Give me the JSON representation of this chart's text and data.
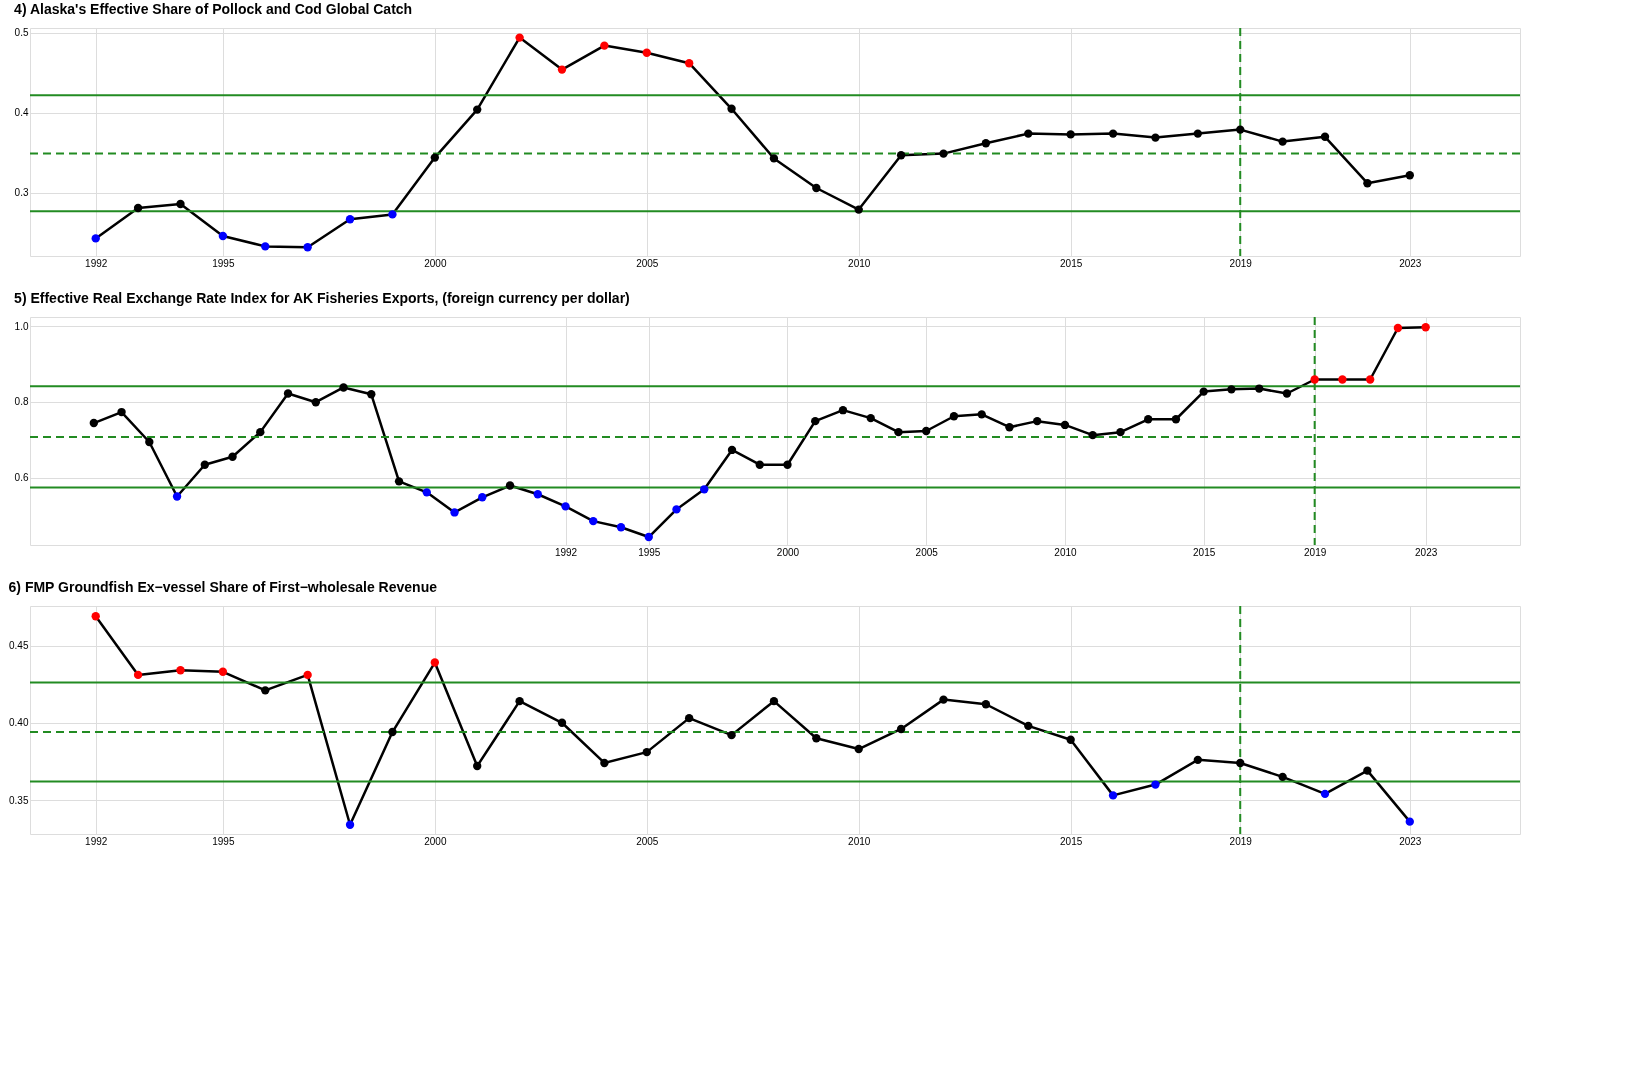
{
  "chart_data": [
    {
      "type": "line",
      "title": "4) Alaska's Effective Share of Pollock and Cod Global Catch",
      "x": [
        1992,
        1993,
        1994,
        1995,
        1996,
        1997,
        1998,
        1999,
        2000,
        2001,
        2002,
        2003,
        2004,
        2005,
        2006,
        2007,
        2008,
        2009,
        2010,
        2011,
        2012,
        2013,
        2014,
        2015,
        2016,
        2017,
        2018,
        2019,
        2020,
        2021,
        2022,
        2023
      ],
      "series": [
        {
          "color": "#000000",
          "values": [
            0.243,
            0.281,
            0.286,
            0.246,
            0.233,
            0.232,
            0.267,
            0.273,
            0.344,
            0.404,
            0.494,
            0.454,
            0.484,
            0.475,
            0.462,
            0.405,
            0.343,
            0.306,
            0.279,
            0.347,
            0.349,
            0.362,
            0.374,
            0.373,
            0.374,
            0.369,
            0.374,
            0.379,
            0.364,
            0.37,
            0.312,
            0.322
          ],
          "colors": [
            "#0000ff",
            "#000000",
            "#000000",
            "#0000ff",
            "#0000ff",
            "#0000ff",
            "#0000ff",
            "#0000ff",
            "#000000",
            "#000000",
            "#ff0000",
            "#ff0000",
            "#ff0000",
            "#ff0000",
            "#ff0000",
            "#000000",
            "#000000",
            "#000000",
            "#000000",
            "#000000",
            "#000000",
            "#000000",
            "#000000",
            "#000000",
            "#000000",
            "#000000",
            "#000000",
            "#000000",
            "#000000",
            "#000000",
            "#000000",
            "#000000"
          ]
        }
      ],
      "xlim": [
        1990.45,
        2025.6
      ],
      "xticks": [
        1992,
        1995,
        2000,
        2005,
        2010,
        2015,
        2019,
        2023
      ],
      "ylim": [
        0.221,
        0.506
      ],
      "yticks": [
        0.3,
        0.4,
        0.5
      ],
      "ref_lines": [
        {
          "axis": "y",
          "value": 0.422,
          "color": "#228b22",
          "line_style": "solid"
        },
        {
          "axis": "y",
          "value": 0.349,
          "color": "#228b22",
          "line_style": "dashed"
        },
        {
          "axis": "y",
          "value": 0.277,
          "color": "#228b22",
          "line_style": "solid"
        },
        {
          "axis": "x",
          "value": 2019,
          "color": "#228b22",
          "line_style": "dashed"
        }
      ],
      "grid": true,
      "marker": "circle",
      "line_style": "solid"
    },
    {
      "type": "line",
      "title": "5) Effective Real Exchange Rate Index for AK Fisheries Exports, (foreign currency per dollar)",
      "x": [
        1975,
        1976,
        1977,
        1978,
        1979,
        1980,
        1981,
        1982,
        1983,
        1984,
        1985,
        1986,
        1987,
        1988,
        1989,
        1990,
        1991,
        1992,
        1993,
        1994,
        1995,
        1996,
        1997,
        1998,
        1999,
        2000,
        2001,
        2002,
        2003,
        2004,
        2005,
        2006,
        2007,
        2008,
        2009,
        2010,
        2011,
        2012,
        2013,
        2014,
        2015,
        2016,
        2017,
        2018,
        2019,
        2020,
        2021,
        2022,
        2023
      ],
      "series": [
        {
          "color": "#000000",
          "values": [
            0.744,
            0.773,
            0.694,
            0.55,
            0.634,
            0.655,
            0.72,
            0.822,
            0.799,
            0.838,
            0.82,
            0.59,
            0.561,
            0.508,
            0.548,
            0.579,
            0.556,
            0.524,
            0.485,
            0.469,
            0.443,
            0.516,
            0.569,
            0.673,
            0.634,
            0.634,
            0.749,
            0.778,
            0.757,
            0.72,
            0.723,
            0.762,
            0.767,
            0.733,
            0.749,
            0.739,
            0.712,
            0.72,
            0.754,
            0.754,
            0.827,
            0.833,
            0.835,
            0.822,
            0.859,
            0.859,
            0.859,
            0.995,
            0.997
          ],
          "colors": [
            "#000000",
            "#000000",
            "#000000",
            "#0000ff",
            "#000000",
            "#000000",
            "#000000",
            "#000000",
            "#000000",
            "#000000",
            "#000000",
            "#000000",
            "#0000ff",
            "#0000ff",
            "#0000ff",
            "#000000",
            "#0000ff",
            "#0000ff",
            "#0000ff",
            "#0000ff",
            "#0000ff",
            "#0000ff",
            "#0000ff",
            "#000000",
            "#000000",
            "#000000",
            "#000000",
            "#000000",
            "#000000",
            "#000000",
            "#000000",
            "#000000",
            "#000000",
            "#000000",
            "#000000",
            "#000000",
            "#000000",
            "#000000",
            "#000000",
            "#000000",
            "#000000",
            "#000000",
            "#000000",
            "#000000",
            "#ff0000",
            "#ff0000",
            "#ff0000",
            "#ff0000",
            "#ff0000"
          ]
        }
      ],
      "xlim": [
        1972.7,
        2026.4
      ],
      "xticks": [
        1992,
        1995,
        2000,
        2005,
        2010,
        2015,
        2019,
        2023
      ],
      "ylim": [
        0.422,
        1.024
      ],
      "yticks": [
        0.6,
        0.8,
        {
          "value": 1.0,
          "label": "1.0"
        }
      ],
      "ref_lines": [
        {
          "axis": "y",
          "value": 0.841,
          "color": "#228b22",
          "line_style": "solid"
        },
        {
          "axis": "y",
          "value": 0.707,
          "color": "#228b22",
          "line_style": "dashed"
        },
        {
          "axis": "y",
          "value": 0.574,
          "color": "#228b22",
          "line_style": "solid"
        },
        {
          "axis": "x",
          "value": 2019,
          "color": "#228b22",
          "line_style": "dashed"
        }
      ],
      "grid": true,
      "marker": "circle",
      "line_style": "solid"
    },
    {
      "type": "line",
      "title": "6) FMP Groundfish Ex−vessel Share of First−wholesale Revenue",
      "x": [
        1992,
        1993,
        1994,
        1995,
        1996,
        1997,
        1998,
        1999,
        2000,
        2001,
        2002,
        2003,
        2004,
        2005,
        2006,
        2007,
        2008,
        2009,
        2010,
        2011,
        2012,
        2013,
        2014,
        2015,
        2016,
        2017,
        2018,
        2019,
        2020,
        2021,
        2022,
        2023
      ],
      "series": [
        {
          "color": "#000000",
          "values": [
            0.469,
            0.431,
            0.434,
            0.433,
            0.421,
            0.431,
            0.334,
            0.394,
            0.439,
            0.372,
            0.414,
            0.4,
            0.374,
            0.381,
            0.403,
            0.392,
            0.414,
            0.39,
            0.383,
            0.396,
            0.415,
            0.412,
            0.398,
            0.389,
            0.353,
            0.36,
            0.376,
            0.374,
            0.365,
            0.354,
            0.369,
            0.336
          ],
          "colors": [
            "#ff0000",
            "#ff0000",
            "#ff0000",
            "#ff0000",
            "#000000",
            "#ff0000",
            "#0000ff",
            "#000000",
            "#ff0000",
            "#000000",
            "#000000",
            "#000000",
            "#000000",
            "#000000",
            "#000000",
            "#000000",
            "#000000",
            "#000000",
            "#000000",
            "#000000",
            "#000000",
            "#000000",
            "#000000",
            "#000000",
            "#0000ff",
            "#0000ff",
            "#000000",
            "#000000",
            "#000000",
            "#0000ff",
            "#000000",
            "#0000ff"
          ]
        }
      ],
      "xlim": [
        1990.45,
        2025.6
      ],
      "xticks": [
        1992,
        1995,
        2000,
        2005,
        2010,
        2015,
        2019,
        2023
      ],
      "ylim": [
        0.328,
        0.4756
      ],
      "yticks": [
        0.35,
        {
          "value": 0.4,
          "label": "0.40"
        },
        0.45
      ],
      "ref_lines": [
        {
          "axis": "y",
          "value": 0.426,
          "color": "#228b22",
          "line_style": "solid"
        },
        {
          "axis": "y",
          "value": 0.394,
          "color": "#228b22",
          "line_style": "dashed"
        },
        {
          "axis": "y",
          "value": 0.362,
          "color": "#228b22",
          "line_style": "solid"
        },
        {
          "axis": "x",
          "value": 2019,
          "color": "#228b22",
          "line_style": "dashed"
        }
      ],
      "grid": true,
      "marker": "circle",
      "line_style": "solid"
    }
  ]
}
